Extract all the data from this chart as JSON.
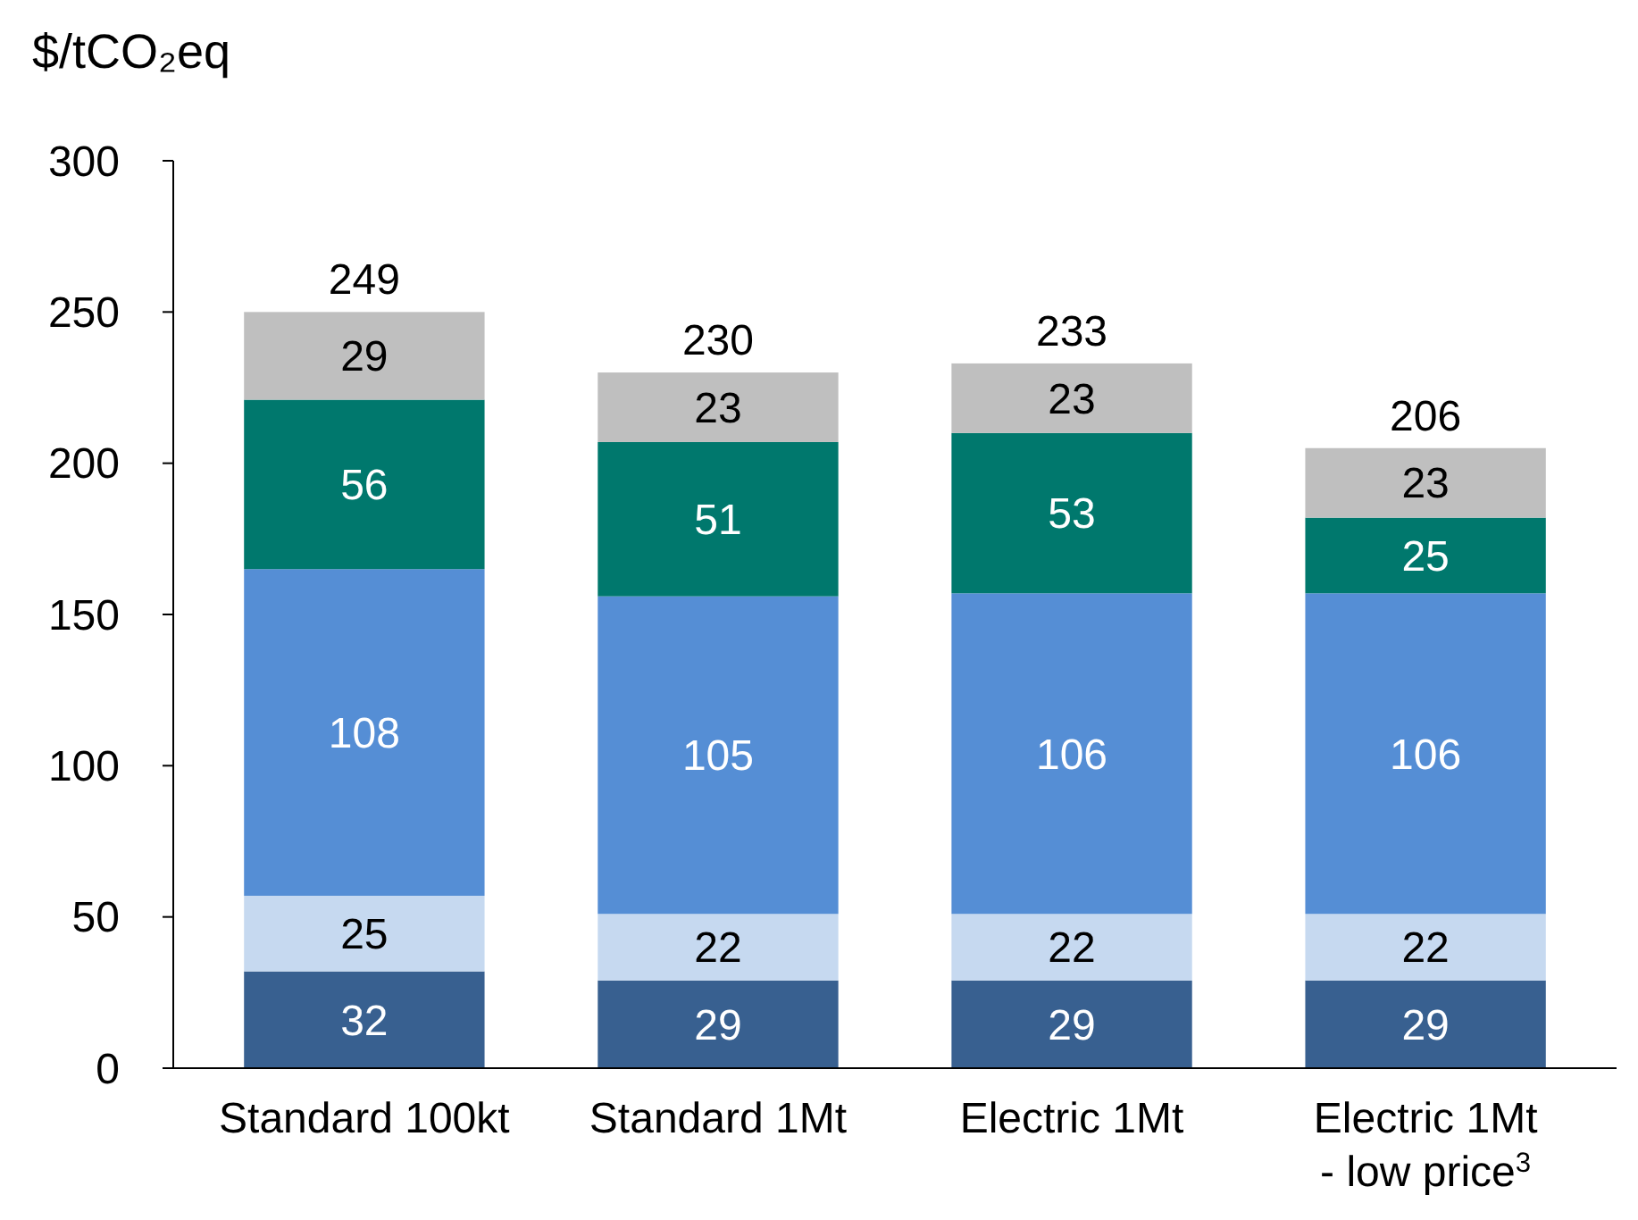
{
  "chart_data": {
    "type": "bar",
    "stacked": true,
    "ylabel": "$/tCO₂eq",
    "categories": [
      "Standard 100kt",
      "Standard 1Mt",
      "Electric 1Mt",
      "Electric 1Mt\n- low price$^{3}$"
    ],
    "series": [
      {
        "color": "#386090",
        "values": [
          32,
          29,
          29,
          29
        ]
      },
      {
        "color": "#c6d9f0",
        "values": [
          25,
          22,
          22,
          22
        ]
      },
      {
        "color": "#558ed5",
        "values": [
          108,
          105,
          106,
          106
        ]
      },
      {
        "color": "#00786d",
        "values": [
          56,
          51,
          53,
          25
        ]
      },
      {
        "color": "#bfbfbf",
        "values": [
          29,
          23,
          23,
          23
        ]
      }
    ],
    "ylim": [
      0,
      300
    ],
    "yticks": [
      0,
      50,
      100,
      150,
      200,
      250,
      300
    ],
    "grid": false,
    "data_labels": true,
    "totals": [
      "249",
      "230",
      "233",
      "206"
    ]
  }
}
